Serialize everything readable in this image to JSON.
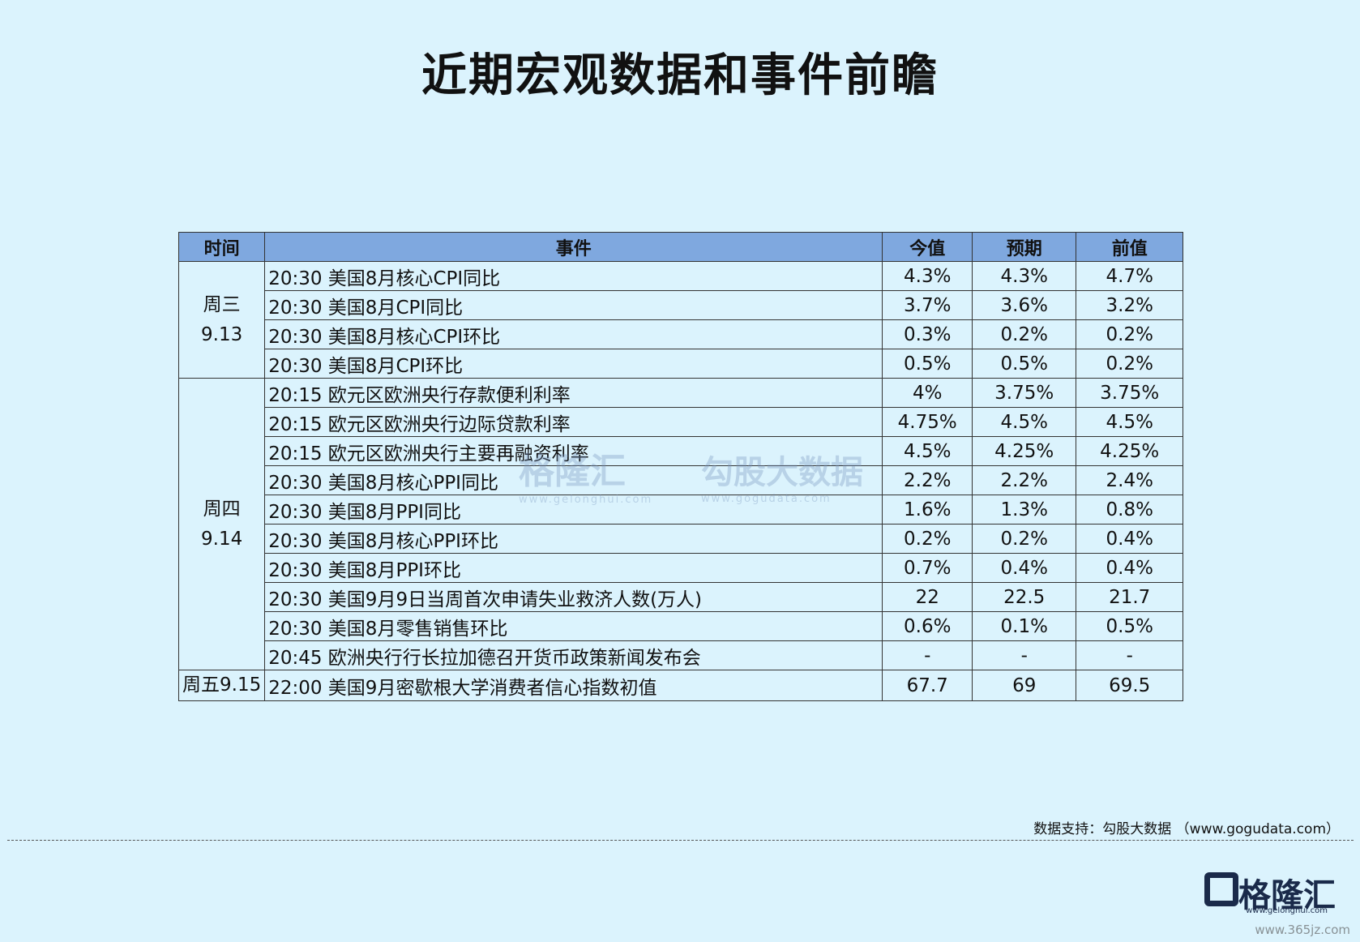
{
  "header": {
    "title": "近期宏观数据和事件前瞻"
  },
  "table": {
    "columns": [
      "时间",
      "事件",
      "今值",
      "预期",
      "前值"
    ],
    "groups": [
      {
        "time": [
          "周三",
          "9.13"
        ],
        "rows": [
          [
            "20:30 美国8月核心CPI同比",
            "4.3%",
            "4.3%",
            "4.7%"
          ],
          [
            "20:30 美国8月CPI同比",
            "3.7%",
            "3.6%",
            "3.2%"
          ],
          [
            "20:30 美国8月核心CPI环比",
            "0.3%",
            "0.2%",
            "0.2%"
          ],
          [
            "20:30 美国8月CPI环比",
            "0.5%",
            "0.5%",
            "0.2%"
          ]
        ]
      },
      {
        "time": [
          "周四",
          "9.14"
        ],
        "rows": [
          [
            "20:15 欧元区欧洲央行存款便利利率",
            "4%",
            "3.75%",
            "3.75%"
          ],
          [
            "20:15 欧元区欧洲央行边际贷款利率",
            "4.75%",
            "4.5%",
            "4.5%"
          ],
          [
            "20:15 欧元区欧洲央行主要再融资利率",
            "4.5%",
            "4.25%",
            "4.25%"
          ],
          [
            "20:30 美国8月核心PPI同比",
            "2.2%",
            "2.2%",
            "2.4%"
          ],
          [
            "20:30 美国8月PPI同比",
            "1.6%",
            "1.3%",
            "0.8%"
          ],
          [
            "20:30 美国8月核心PPI环比",
            "0.2%",
            "0.2%",
            "0.4%"
          ],
          [
            "20:30 美国8月PPI环比",
            "0.7%",
            "0.4%",
            "0.4%"
          ],
          [
            "20:30 美国9月9日当周首次申请失业救济人数(万人)",
            "22",
            "22.5",
            "21.7"
          ],
          [
            "20:30 美国8月零售销售环比",
            "0.6%",
            "0.1%",
            "0.5%"
          ],
          [
            "20:45 欧洲央行行长拉加德召开货币政策新闻发布会",
            "-",
            "-",
            "-"
          ]
        ]
      },
      {
        "time": [
          "周五9.15"
        ],
        "rows": [
          [
            "22:00 美国9月密歇根大学消费者信心指数初值",
            "67.7",
            "69",
            "69.5"
          ]
        ]
      }
    ]
  },
  "watermarks": [
    {
      "text": "格隆汇",
      "url": "www.gelonghui.com"
    },
    {
      "text": "勾股大数据",
      "url": "www.gogudata.com"
    }
  ],
  "footer": {
    "source": "数据支持：勾股大数据 （www.gogudata.com）",
    "logo": "格隆汇",
    "logo_url": "www.gelonghui.com",
    "watermark": "www.365jz.com"
  }
}
